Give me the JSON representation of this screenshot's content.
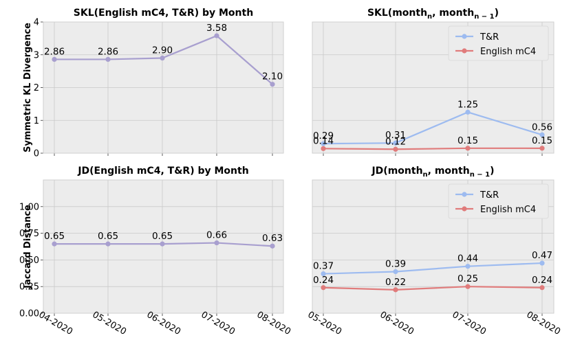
{
  "chart_data": [
    {
      "type": "line",
      "title": "SKL(English mC4, T&R) by Month",
      "ylabel": "Symmetric KL Divergence",
      "categories": [
        "04-2020",
        "05-2020",
        "06-2020",
        "07-2020",
        "08-2020"
      ],
      "series": [
        {
          "values": [
            2.86,
            2.86,
            2.9,
            3.58,
            2.1
          ],
          "labels": [
            "2.86",
            "2.86",
            "2.90",
            "3.58",
            "2.10"
          ],
          "color": "#a89fcf"
        }
      ],
      "ylim": [
        0,
        4
      ],
      "yticks": [
        "0",
        "1",
        "2",
        "3",
        "4"
      ],
      "show_x_labels": false,
      "grid": true
    },
    {
      "type": "line",
      "title_parts": {
        "pre": "SKL(month",
        "sub1": "n",
        "mid": ", month",
        "sub2": "n − 1",
        "post": ")"
      },
      "categories": [
        "05-2020",
        "06-2020",
        "07-2020",
        "08-2020"
      ],
      "series": [
        {
          "name": "T&R",
          "values": [
            0.29,
            0.31,
            1.25,
            0.56
          ],
          "labels": [
            "0.29",
            "0.31",
            "1.25",
            "0.56"
          ],
          "color": "#9dbbf0"
        },
        {
          "name": "English mC4",
          "values": [
            0.14,
            0.12,
            0.15,
            0.15
          ],
          "labels": [
            "0.14",
            "0.12",
            "0.15",
            "0.15"
          ],
          "color": "#e07b7b"
        }
      ],
      "ylim": [
        0,
        4
      ],
      "show_y_labels": false,
      "show_x_labels": false,
      "legend": "top-right",
      "grid": true
    },
    {
      "type": "line",
      "title": "JD(English mC4, T&R) by Month",
      "ylabel": "Jaccard Distance",
      "categories": [
        "04-2020",
        "05-2020",
        "06-2020",
        "07-2020",
        "08-2020"
      ],
      "series": [
        {
          "values": [
            0.65,
            0.65,
            0.65,
            0.66,
            0.63
          ],
          "labels": [
            "0.65",
            "0.65",
            "0.65",
            "0.66",
            "0.63"
          ],
          "color": "#a89fcf"
        }
      ],
      "ylim": [
        0,
        1.25
      ],
      "yticks": [
        "0.00",
        "0.25",
        "0.50",
        "0.75",
        "1.00"
      ],
      "grid": true
    },
    {
      "type": "line",
      "title_parts": {
        "pre": "JD(month",
        "sub1": "n",
        "mid": ", month",
        "sub2": "n − 1",
        "post": ")"
      },
      "categories": [
        "05-2020",
        "06-2020",
        "07-2020",
        "08-2020"
      ],
      "series": [
        {
          "name": "T&R",
          "values": [
            0.37,
            0.39,
            0.44,
            0.47
          ],
          "labels": [
            "0.37",
            "0.39",
            "0.44",
            "0.47"
          ],
          "color": "#9dbbf0"
        },
        {
          "name": "English mC4",
          "values": [
            0.24,
            0.22,
            0.25,
            0.24
          ],
          "labels": [
            "0.24",
            "0.22",
            "0.25",
            "0.24"
          ],
          "color": "#e07b7b"
        }
      ],
      "ylim": [
        0,
        1.25
      ],
      "show_y_labels": false,
      "legend": "top-right",
      "grid": true
    }
  ]
}
